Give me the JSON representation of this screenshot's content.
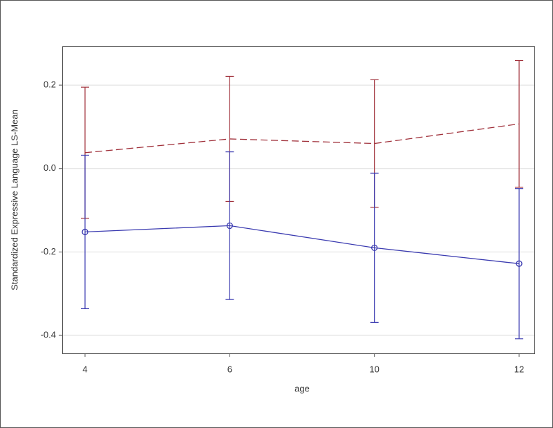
{
  "chart_data": {
    "type": "line",
    "xlabel": "age",
    "ylabel": "Standardized Expressive Language LS-Mean",
    "categories": [
      "4",
      "6",
      "10",
      "12"
    ],
    "series": [
      {
        "color": "#a0303a",
        "dash": true,
        "marker": false,
        "values": [
          0.038,
          0.071,
          0.06,
          0.107
        ],
        "errors": [
          0.157,
          0.15,
          0.153,
          0.152
        ]
      },
      {
        "color": "#3a3ab0",
        "dash": false,
        "marker": true,
        "values": [
          -0.152,
          -0.137,
          -0.19,
          -0.228
        ],
        "errors": [
          0.184,
          0.177,
          0.179,
          0.18
        ]
      }
    ],
    "ylim": [
      -0.443,
      0.293
    ],
    "yticks": [
      -0.4,
      -0.2,
      {
        "value": 0,
        "label": "0.0"
      },
      0.2
    ],
    "grid": true
  }
}
